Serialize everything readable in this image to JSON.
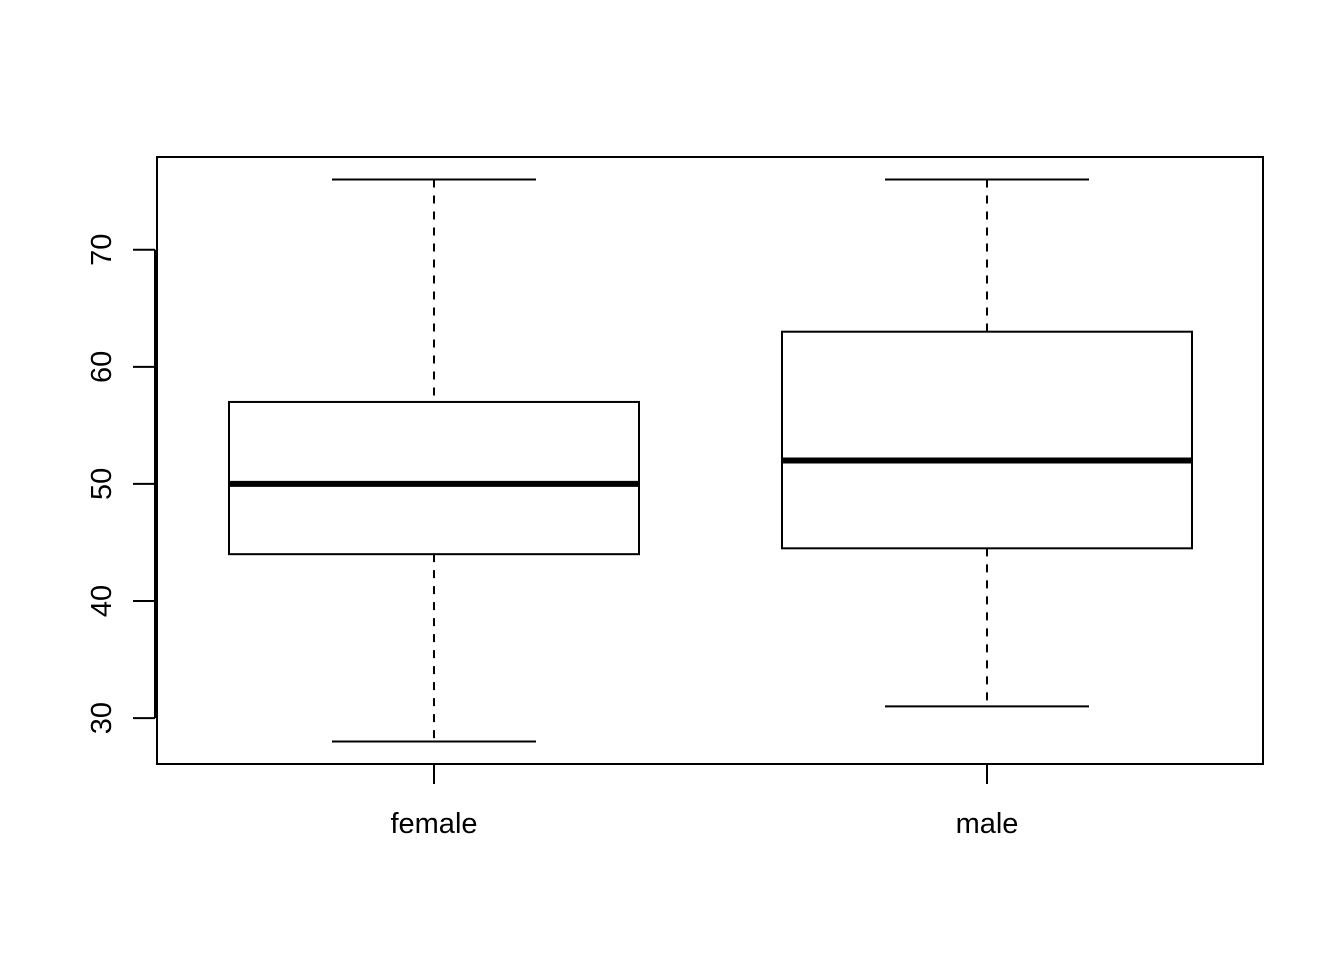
{
  "chart_data": {
    "type": "boxplot",
    "title": "",
    "xlabel": "",
    "ylabel": "",
    "categories": [
      "female",
      "male"
    ],
    "boxes": [
      {
        "category": "female",
        "whisker_low": 28,
        "q1": 44,
        "median": 50,
        "q3": 57,
        "whisker_high": 76
      },
      {
        "category": "male",
        "whisker_low": 31,
        "q1": 44.5,
        "median": 52,
        "q3": 63,
        "whisker_high": 76
      }
    ],
    "y_ticks": [
      30,
      40,
      50,
      60,
      70
    ],
    "y_tick_labels": [
      "30",
      "40",
      "50",
      "60",
      "70"
    ],
    "ylim": [
      26.08,
      77.92
    ],
    "grid": false,
    "legend": "none",
    "colors": {
      "line": "#000000",
      "background": "#ffffff"
    }
  }
}
